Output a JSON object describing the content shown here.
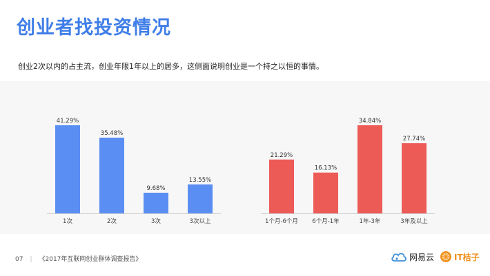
{
  "header": {
    "title": "创业者找投资情况",
    "subtitle": "创业2次以内的占主流，创业年限1年以上的居多，这侧面说明创业是一个持之以恒的事情。"
  },
  "footer": {
    "page_number": "07",
    "report_title": "《2017年互联网创业群体调查报告》",
    "brand_a": "网易云",
    "brand_b": "IT桔子"
  },
  "colors": {
    "title": "#3f7ee8",
    "series_left": "#5b8ef2",
    "series_right": "#ed5b56",
    "panel_bg": "#f7f7f7"
  },
  "icons": {
    "brand_a_logo": "cloud-icon",
    "brand_b_logo": "orange-slice-icon"
  },
  "chart_data": [
    {
      "type": "bar",
      "categories": [
        "1次",
        "2次",
        "3次",
        "3次以上"
      ],
      "values": [
        41.29,
        35.48,
        9.68,
        13.55
      ],
      "value_labels": [
        "41.29%",
        "35.48%",
        "9.68%",
        "13.55%"
      ],
      "title": "",
      "xlabel": "",
      "ylabel": "",
      "ylim": [
        0,
        41.29
      ],
      "grid": false
    },
    {
      "type": "bar",
      "categories": [
        "1个月-6个月",
        "6个月-1年",
        "1年-3年",
        "3年及以上"
      ],
      "values": [
        21.29,
        16.13,
        34.84,
        27.74
      ],
      "value_labels": [
        "21.29%",
        "16.13%",
        "34.84%",
        "27.74%"
      ],
      "title": "",
      "xlabel": "",
      "ylabel": "",
      "ylim": [
        0,
        34.84
      ],
      "grid": false
    }
  ]
}
